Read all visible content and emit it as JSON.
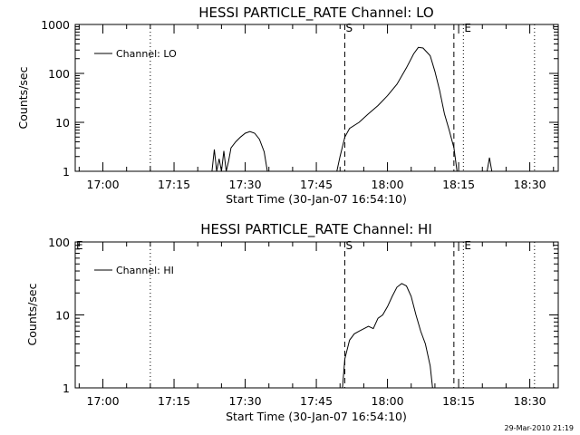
{
  "timestamp": "29-Mar-2010 21:19",
  "chart_data": [
    {
      "type": "line",
      "title": "HESSI PARTICLE_RATE Channel: LO",
      "xlabel": "Start Time (30-Jan-07 16:54:10)",
      "ylabel": "Counts/sec",
      "y_scale": "log",
      "ylim": [
        1,
        1000
      ],
      "y_ticks": [
        "1",
        "10",
        "100",
        "1000"
      ],
      "xlim": [
        "16:54:10",
        "18:36:00"
      ],
      "x_ticks": [
        "17:00",
        "17:15",
        "17:30",
        "17:45",
        "18:00",
        "18:15",
        "18:30"
      ],
      "legend": {
        "position": "top-left",
        "entries": [
          "Channel: LO"
        ]
      },
      "markers": [
        {
          "label": "S",
          "time": "17:51",
          "style": "dashed"
        },
        {
          "label": "E",
          "time": "18:16",
          "style": "dotted"
        }
      ],
      "vlines": [
        {
          "time": "17:10",
          "style": "dotted"
        },
        {
          "time": "17:51",
          "style": "dashed"
        },
        {
          "time": "18:14",
          "style": "dashed"
        },
        {
          "time": "18:16",
          "style": "dotted"
        },
        {
          "time": "18:31",
          "style": "dotted"
        }
      ],
      "series": [
        {
          "segments": [
            [
              [
                "17:23:00",
                1
              ],
              [
                "17:23:30",
                2.8
              ],
              [
                "17:24:00",
                1
              ],
              [
                "17:24:30",
                1.8
              ],
              [
                "17:25:00",
                1
              ],
              [
                "17:25:30",
                2.6
              ],
              [
                "17:26:00",
                1
              ],
              [
                "17:26:30",
                1.6
              ],
              [
                "17:27:00",
                3
              ],
              [
                "17:28:00",
                4
              ],
              [
                "17:29:00",
                5
              ],
              [
                "17:30:00",
                6
              ],
              [
                "17:31:00",
                6.5
              ],
              [
                "17:32:00",
                6
              ],
              [
                "17:33:00",
                4.5
              ],
              [
                "17:34:00",
                2.5
              ],
              [
                "17:34:40",
                1
              ]
            ],
            [
              [
                "17:49:20",
                1
              ],
              [
                "17:50:00",
                2
              ],
              [
                "17:51:00",
                5
              ],
              [
                "17:52:00",
                7.5
              ],
              [
                "17:54:00",
                10
              ],
              [
                "17:56:00",
                15
              ],
              [
                "17:58:00",
                22
              ],
              [
                "18:00:00",
                35
              ],
              [
                "18:02:00",
                60
              ],
              [
                "18:04:00",
                130
              ],
              [
                "18:05:30",
                250
              ],
              [
                "18:06:30",
                340
              ],
              [
                "18:07:30",
                330
              ],
              [
                "18:09:00",
                230
              ],
              [
                "18:10:00",
                110
              ],
              [
                "18:11:00",
                45
              ],
              [
                "18:12:00",
                15
              ],
              [
                "18:13:00",
                7
              ],
              [
                "18:14:00",
                3
              ],
              [
                "18:14:40",
                1
              ]
            ],
            [
              [
                "18:21:00",
                1
              ],
              [
                "18:21:30",
                1.9
              ],
              [
                "18:22:00",
                1
              ]
            ]
          ]
        }
      ]
    },
    {
      "type": "line",
      "title": "HESSI PARTICLE_RATE Channel: HI",
      "xlabel": "Start Time (30-Jan-07 16:54:10)",
      "ylabel": "Counts/sec",
      "y_scale": "log",
      "ylim": [
        1,
        100
      ],
      "y_ticks": [
        "1",
        "10",
        "100"
      ],
      "xlim": [
        "16:54:10",
        "18:36:00"
      ],
      "x_ticks": [
        "17:00",
        "17:15",
        "17:30",
        "17:45",
        "18:00",
        "18:15",
        "18:30"
      ],
      "legend": {
        "position": "top-left",
        "entries": [
          "Channel: HI"
        ]
      },
      "markers": [
        {
          "label": "E",
          "time": "16:54:10",
          "style": "dotted"
        },
        {
          "label": "S",
          "time": "17:51",
          "style": "dashed"
        },
        {
          "label": "E",
          "time": "18:16",
          "style": "dotted"
        }
      ],
      "vlines": [
        {
          "time": "17:10",
          "style": "dotted"
        },
        {
          "time": "17:51",
          "style": "dashed"
        },
        {
          "time": "18:14",
          "style": "dashed"
        },
        {
          "time": "18:16",
          "style": "dotted"
        },
        {
          "time": "18:31",
          "style": "dotted"
        }
      ],
      "series": [
        {
          "segments": [
            [
              [
                "17:50:30",
                1
              ],
              [
                "17:51:00",
                2.5
              ],
              [
                "17:52:00",
                4.5
              ],
              [
                "17:53:00",
                5.5
              ],
              [
                "17:54:00",
                6
              ],
              [
                "17:56:00",
                7
              ],
              [
                "17:57:00",
                6.5
              ],
              [
                "17:58:00",
                9
              ],
              [
                "17:59:00",
                10
              ],
              [
                "18:00:00",
                13
              ],
              [
                "18:01:00",
                18
              ],
              [
                "18:02:00",
                24
              ],
              [
                "18:03:00",
                27
              ],
              [
                "18:04:00",
                25
              ],
              [
                "18:05:00",
                18
              ],
              [
                "18:06:00",
                10
              ],
              [
                "18:07:00",
                6
              ],
              [
                "18:08:00",
                4
              ],
              [
                "18:09:00",
                2
              ],
              [
                "18:09:30",
                1
              ]
            ]
          ]
        }
      ]
    }
  ]
}
